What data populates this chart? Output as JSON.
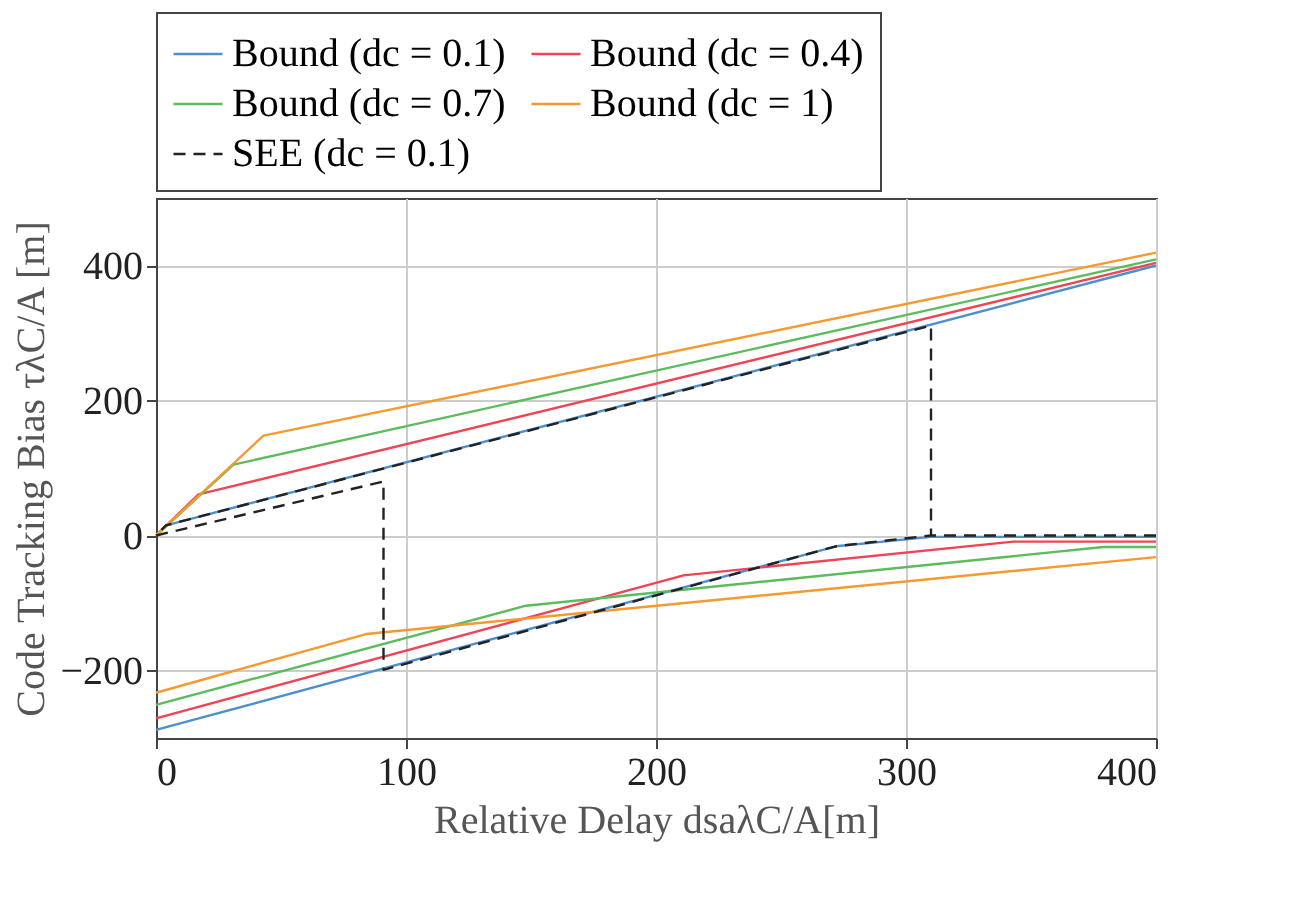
{
  "chart_data": {
    "type": "line",
    "xlabel": "Relative Delay dsaλC/A[m]",
    "ylabel": "Code Tracking Bias τλC/A [m]",
    "xlim": [
      0,
      400
    ],
    "xticks": [
      0,
      100,
      200,
      300,
      400
    ],
    "ylim": [
      -300,
      500
    ],
    "yticks": [
      -200,
      0,
      200,
      400
    ],
    "grid": true,
    "legend": "top",
    "series": [
      {
        "name": "Bound (dc = 0.1)",
        "color": "#4f8fcc",
        "line_style": "solid",
        "x": [
          0,
          4,
          400,
          null,
          0,
          272,
          310,
          400
        ],
        "values": [
          0,
          15,
          400,
          null,
          -288,
          -16,
          -2,
          -2
        ]
      },
      {
        "name": "Bound (dc = 0.4)",
        "color": "#ee4455",
        "line_style": "solid",
        "x": [
          0,
          17,
          400,
          null,
          0,
          211,
          343,
          400
        ],
        "values": [
          0,
          61,
          404,
          null,
          -271,
          -59,
          -9,
          -9
        ]
      },
      {
        "name": "Bound (dc = 0.7)",
        "color": "#5cbb5c",
        "line_style": "solid",
        "x": [
          0,
          31,
          400,
          null,
          0,
          148,
          379,
          400
        ],
        "values": [
          0,
          105,
          409,
          null,
          -251,
          -104,
          -17,
          -17
        ]
      },
      {
        "name": "Bound (dc = 1)",
        "color": "#f59a30",
        "line_style": "solid",
        "x": [
          0,
          43,
          400,
          null,
          0,
          84,
          400
        ],
        "values": [
          0,
          148,
          419,
          null,
          -233,
          -146,
          -32
        ]
      },
      {
        "name": "SEE (dc = 0.1)",
        "color": "#222222",
        "line_style": "dashed",
        "x": [
          400,
          310,
          310,
          4,
          0,
          91,
          91,
          272,
          310
        ],
        "values": [
          0,
          0,
          311,
          15,
          0,
          80,
          -199,
          -16,
          0
        ]
      }
    ]
  }
}
